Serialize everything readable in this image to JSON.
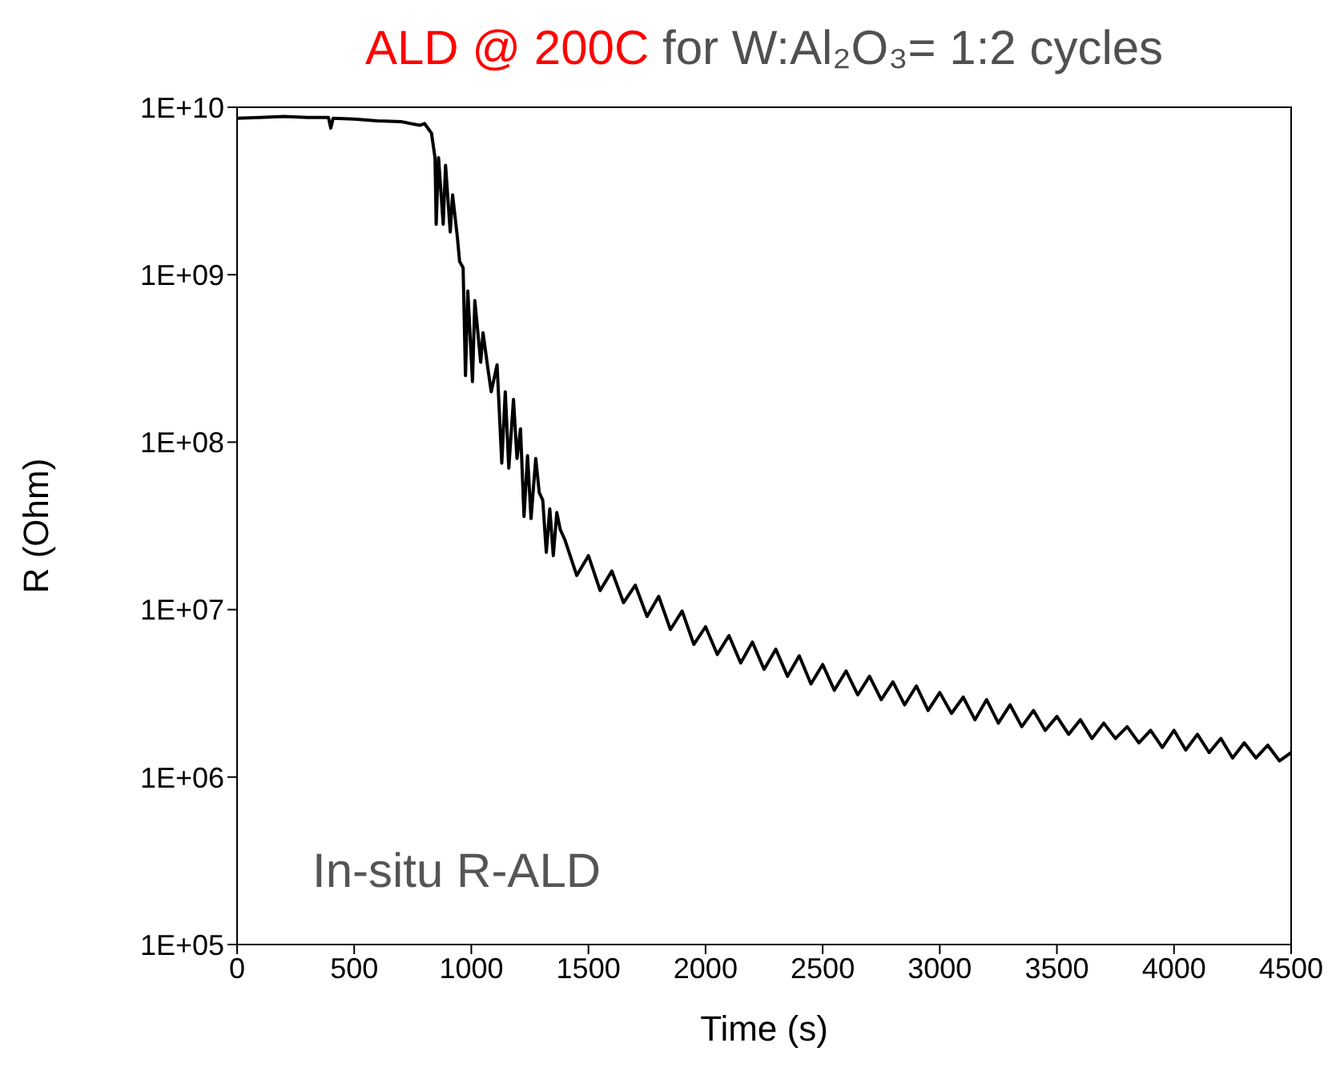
{
  "chart_data": {
    "type": "line",
    "title": "ALD @ 200C",
    "subtitle": "for W:Al₂O₃= 1:2 cycles",
    "xlabel": "Time (s)",
    "ylabel": "R (Ohm)",
    "annotations": [
      "In-situ R-ALD"
    ],
    "log": "y",
    "marker": "none",
    "line_style": "solid",
    "xlim": [
      0,
      4500
    ],
    "xticks": [
      0,
      500,
      1000,
      1500,
      2000,
      2500,
      3000,
      3500,
      4000,
      4500
    ],
    "ylim": [
      100000,
      10000000000
    ],
    "yticks": [
      {
        "value": 100000,
        "label": "1E+05"
      },
      {
        "value": 1000000,
        "label": "1E+06"
      },
      {
        "value": 10000000,
        "label": "1E+07"
      },
      {
        "value": 100000000,
        "label": "1E+08"
      },
      {
        "value": 1000000000,
        "label": "1E+09"
      },
      {
        "value": 10000000000,
        "label": "1E+10"
      }
    ],
    "series": [
      {
        "color": "#000000",
        "x": [
          0,
          100,
          200,
          300,
          390,
          400,
          410,
          500,
          600,
          700,
          780,
          800,
          830,
          845,
          850,
          860,
          880,
          890,
          910,
          920,
          940,
          950,
          965,
          975,
          985,
          1005,
          1015,
          1040,
          1050,
          1070,
          1085,
          1110,
          1130,
          1145,
          1160,
          1180,
          1195,
          1210,
          1225,
          1240,
          1255,
          1275,
          1290,
          1305,
          1320,
          1335,
          1350,
          1365,
          1380,
          1400,
          1450,
          1500,
          1550,
          1600,
          1650,
          1700,
          1750,
          1800,
          1850,
          1900,
          1950,
          2000,
          2050,
          2100,
          2150,
          2200,
          2250,
          2300,
          2350,
          2400,
          2450,
          2500,
          2550,
          2600,
          2650,
          2700,
          2750,
          2800,
          2850,
          2900,
          2950,
          3000,
          3050,
          3100,
          3150,
          3200,
          3250,
          3300,
          3350,
          3400,
          3450,
          3500,
          3550,
          3600,
          3650,
          3700,
          3750,
          3800,
          3850,
          3900,
          3950,
          4000,
          4050,
          4100,
          4150,
          4200,
          4250,
          4300,
          4350,
          4400,
          4450,
          4500
        ],
        "values": [
          8600000000,
          8700000000,
          8800000000,
          8700000000,
          8700000000,
          7500000000,
          8600000000,
          8500000000,
          8300000000,
          8200000000,
          7800000000,
          8000000000,
          7000000000,
          5000000000,
          2000000000,
          5000000000,
          2000000000,
          4500000000,
          1800000000,
          3000000000,
          1700000000,
          1200000000,
          1100000000,
          250000000,
          800000000,
          230000000,
          700000000,
          300000000,
          450000000,
          280000000,
          200000000,
          290000000,
          75000000,
          200000000,
          70000000,
          180000000,
          80000000,
          120000000,
          36000000,
          83000000,
          35000000,
          80000000,
          50000000,
          45000000,
          22000000,
          40000000,
          21000000,
          38000000,
          30000000,
          26000000,
          16000000,
          21000000,
          13000000,
          17000000,
          11000000,
          14000000,
          9100000,
          12000000,
          7600000,
          9800000,
          6200000,
          7900000,
          5400000,
          7000000,
          4800000,
          6400000,
          4400000,
          5800000,
          4000000,
          5300000,
          3600000,
          4700000,
          3300000,
          4300000,
          3100000,
          4000000,
          2900000,
          3700000,
          2700000,
          3500000,
          2500000,
          3200000,
          2400000,
          3000000,
          2200000,
          2900000,
          2100000,
          2700000,
          2000000,
          2500000,
          1900000,
          2300000,
          1800000,
          2200000,
          1700000,
          2100000,
          1700000,
          2000000,
          1600000,
          1900000,
          1500000,
          1900000,
          1450000,
          1800000,
          1400000,
          1700000,
          1300000,
          1600000,
          1300000,
          1550000,
          1250000,
          1400000
        ]
      }
    ]
  }
}
